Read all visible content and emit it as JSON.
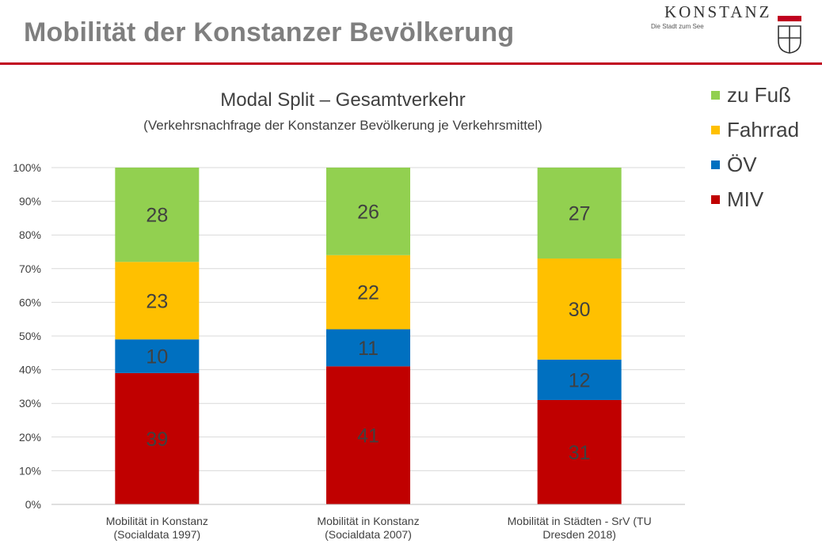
{
  "header": {
    "title": "Mobilität der Konstanzer Bevölkerung",
    "logo_text": "KONSTANZ",
    "logo_tagline": "Die Stadt zum See",
    "accent_color": "#c0001f"
  },
  "chart_data": {
    "type": "bar",
    "stacked": true,
    "title": "Modal Split – Gesamtverkehr",
    "subtitle": "(Verkehrsnachfrage der Konstanzer Bevölkerung je Verkehrsmittel)",
    "categories": [
      "Mobilität in Konstanz (Socialdata 1997)",
      "Mobilität in Konstanz (Socialdata 2007)",
      "Mobilität in Städten - SrV (TU Dresden 2018)"
    ],
    "series": [
      {
        "name": "MIV",
        "color": "#c00000",
        "values": [
          39,
          41,
          31
        ]
      },
      {
        "name": "ÖV",
        "color": "#0070c0",
        "values": [
          10,
          11,
          12
        ]
      },
      {
        "name": "Fahrrad",
        "color": "#ffc000",
        "values": [
          23,
          22,
          30
        ]
      },
      {
        "name": "zu Fuß",
        "color": "#92d050",
        "values": [
          28,
          26,
          27
        ]
      }
    ],
    "legend_order": [
      "zu Fuß",
      "Fahrrad",
      "ÖV",
      "MIV"
    ],
    "y_tick_labels": [
      "0%",
      "10%",
      "20%",
      "30%",
      "40%",
      "50%",
      "60%",
      "70%",
      "80%",
      "90%",
      "100%"
    ],
    "ylim": [
      0,
      100
    ],
    "grid": true,
    "legend_position": "right"
  }
}
